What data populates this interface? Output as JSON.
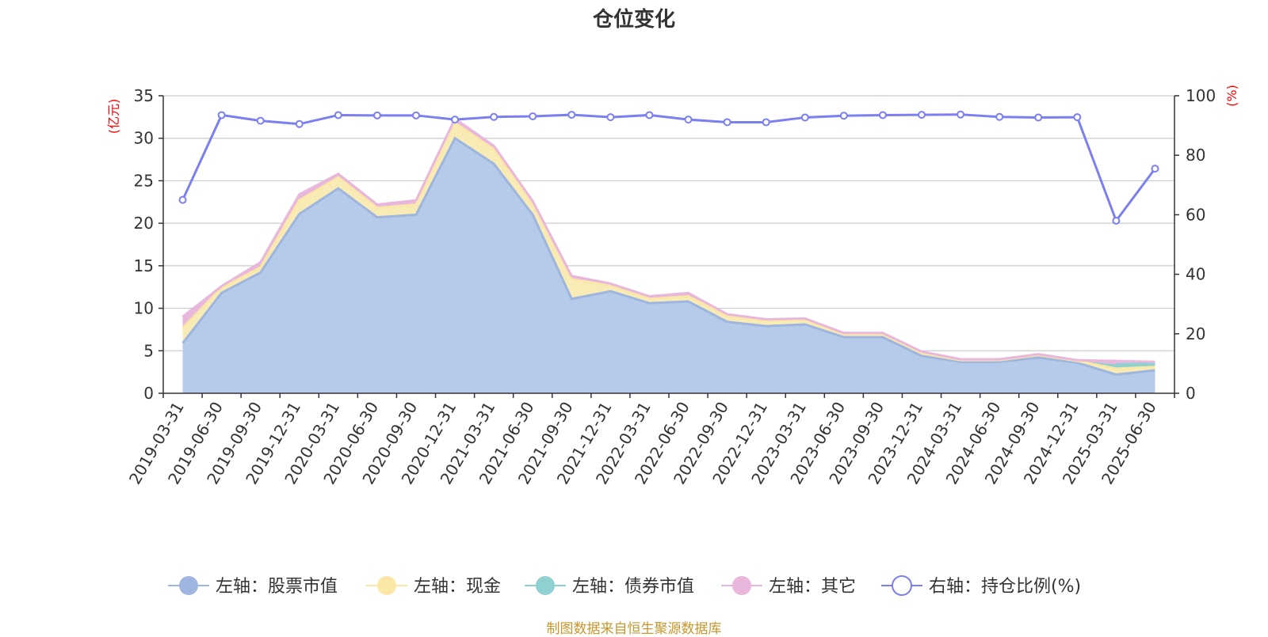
{
  "footer": "制图数据来自恒生聚源数据库",
  "colors": {
    "stock": "#9db5df",
    "stock_fill": "#b6cbea",
    "cash": "#f9e8a8",
    "cash_fill": "#f9ebb6",
    "bond": "#8fd1d1",
    "other": "#e9b6dc",
    "ratio": "#7b7ff0",
    "axis_label": "#ff0000",
    "grid": "#cccccc",
    "footer": "#c8962c"
  },
  "chart_data": {
    "type": "area",
    "title": "仓位变化",
    "x": [
      "2019-03-31",
      "2019-06-30",
      "2019-09-30",
      "2019-12-31",
      "2020-03-31",
      "2020-06-30",
      "2020-09-30",
      "2020-12-31",
      "2021-03-31",
      "2021-06-30",
      "2021-09-30",
      "2021-12-31",
      "2022-03-31",
      "2022-06-30",
      "2022-09-30",
      "2022-12-31",
      "2023-03-31",
      "2023-06-30",
      "2023-09-30",
      "2023-12-31",
      "2024-03-31",
      "2024-06-30",
      "2024-09-30",
      "2024-12-31",
      "2025-03-31",
      "2025-06-30"
    ],
    "y_left_label": "(亿元)",
    "y_right_label": "(%)",
    "y_left_lim": [
      0,
      35
    ],
    "y_left_ticks": [
      0,
      5,
      10,
      15,
      20,
      25,
      30,
      35
    ],
    "y_right_lim": [
      0,
      100
    ],
    "y_right_ticks": [
      0,
      20,
      40,
      60,
      80,
      100
    ],
    "grid": true,
    "legend_position": "bottom",
    "stacked": true,
    "series": [
      {
        "name": "左轴：股票市值",
        "axis": "left",
        "type": "area",
        "values": [
          5.9,
          11.8,
          14.2,
          21.1,
          24.1,
          20.7,
          21.0,
          30.0,
          27.0,
          21.0,
          11.1,
          12.0,
          10.6,
          10.8,
          8.4,
          7.9,
          8.1,
          6.6,
          6.6,
          4.4,
          3.7,
          3.7,
          4.2,
          3.6,
          2.2,
          2.7
        ]
      },
      {
        "name": "左轴：现金",
        "axis": "left",
        "type": "area",
        "values": [
          1.8,
          0.6,
          0.6,
          1.6,
          1.3,
          1.1,
          1.2,
          1.8,
          1.7,
          1.2,
          2.3,
          0.7,
          0.5,
          0.6,
          0.7,
          0.6,
          0.5,
          0.4,
          0.4,
          0.3,
          0.2,
          0.2,
          0.3,
          0.2,
          0.7,
          0.4
        ]
      },
      {
        "name": "左轴：债券市值",
        "axis": "left",
        "type": "area",
        "values": [
          0,
          0,
          0,
          0,
          0,
          0,
          0,
          0,
          0,
          0,
          0,
          0,
          0,
          0,
          0,
          0,
          0,
          0,
          0,
          0,
          0,
          0,
          0,
          0,
          0.5,
          0.4
        ]
      },
      {
        "name": "左轴：其它",
        "axis": "left",
        "type": "area",
        "values": [
          1.3,
          0.2,
          0.6,
          0.7,
          0.4,
          0.4,
          0.5,
          0.5,
          0.4,
          0.4,
          0.4,
          0.2,
          0.3,
          0.4,
          0.2,
          0.2,
          0.2,
          0.1,
          0.1,
          0.2,
          0.1,
          0.1,
          0.1,
          0.1,
          0.4,
          0.2
        ]
      },
      {
        "name": "右轴：持仓比例(%)",
        "axis": "right",
        "type": "line",
        "values": [
          65.0,
          93.5,
          91.6,
          90.5,
          93.5,
          93.4,
          93.4,
          92.0,
          92.9,
          93.1,
          93.6,
          92.8,
          93.5,
          92.0,
          91.1,
          91.1,
          92.7,
          93.3,
          93.5,
          93.6,
          93.7,
          92.9,
          92.7,
          92.8,
          58.0,
          75.5
        ]
      }
    ]
  }
}
